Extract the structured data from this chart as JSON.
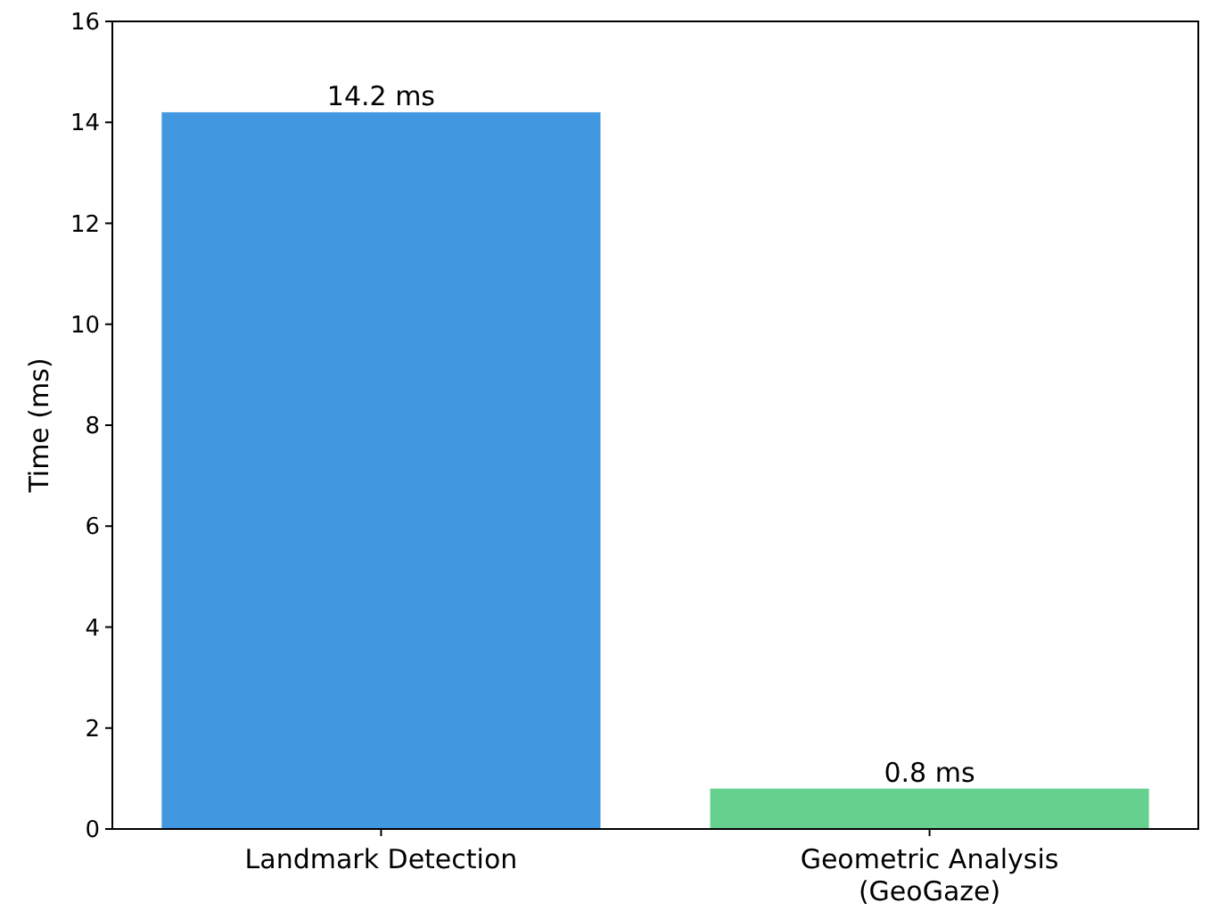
{
  "chart_data": {
    "type": "bar",
    "ylabel": "Time (ms)",
    "categories": [
      "Landmark Detection",
      "Geometric Analysis\n(GeoGaze)"
    ],
    "values": [
      14.2,
      0.8
    ],
    "colors": [
      "#4298e0",
      "#66d18e"
    ],
    "value_labels": [
      "14.2 ms",
      "0.8 ms"
    ],
    "ylim": [
      0,
      16
    ],
    "yticks": [
      0,
      2,
      4,
      6,
      8,
      10,
      12,
      14,
      16
    ],
    "grid": false
  }
}
